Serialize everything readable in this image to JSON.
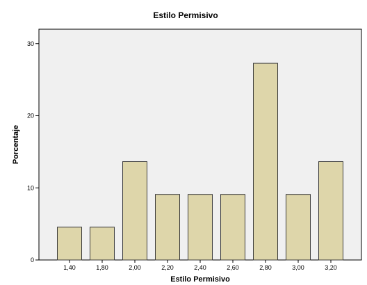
{
  "chart_data": {
    "type": "bar",
    "title": "Estilo Permisivo",
    "xlabel": "Estilo Permisivo",
    "ylabel": "Porcentaje",
    "categories": [
      "1,40",
      "1,80",
      "2,00",
      "2,20",
      "2,40",
      "2,60",
      "2,80",
      "3,00",
      "3,20"
    ],
    "values": [
      4.55,
      4.55,
      13.64,
      9.09,
      9.09,
      9.09,
      27.27,
      9.09,
      13.64
    ],
    "ylim": [
      0,
      32
    ],
    "yticks": [
      "0",
      "10",
      "20",
      "30"
    ],
    "grid": false,
    "colors": {
      "bar_fill": "#ded6aa",
      "bar_stroke": "#3a3a3a",
      "plot_background": "#f0f0f0"
    }
  }
}
